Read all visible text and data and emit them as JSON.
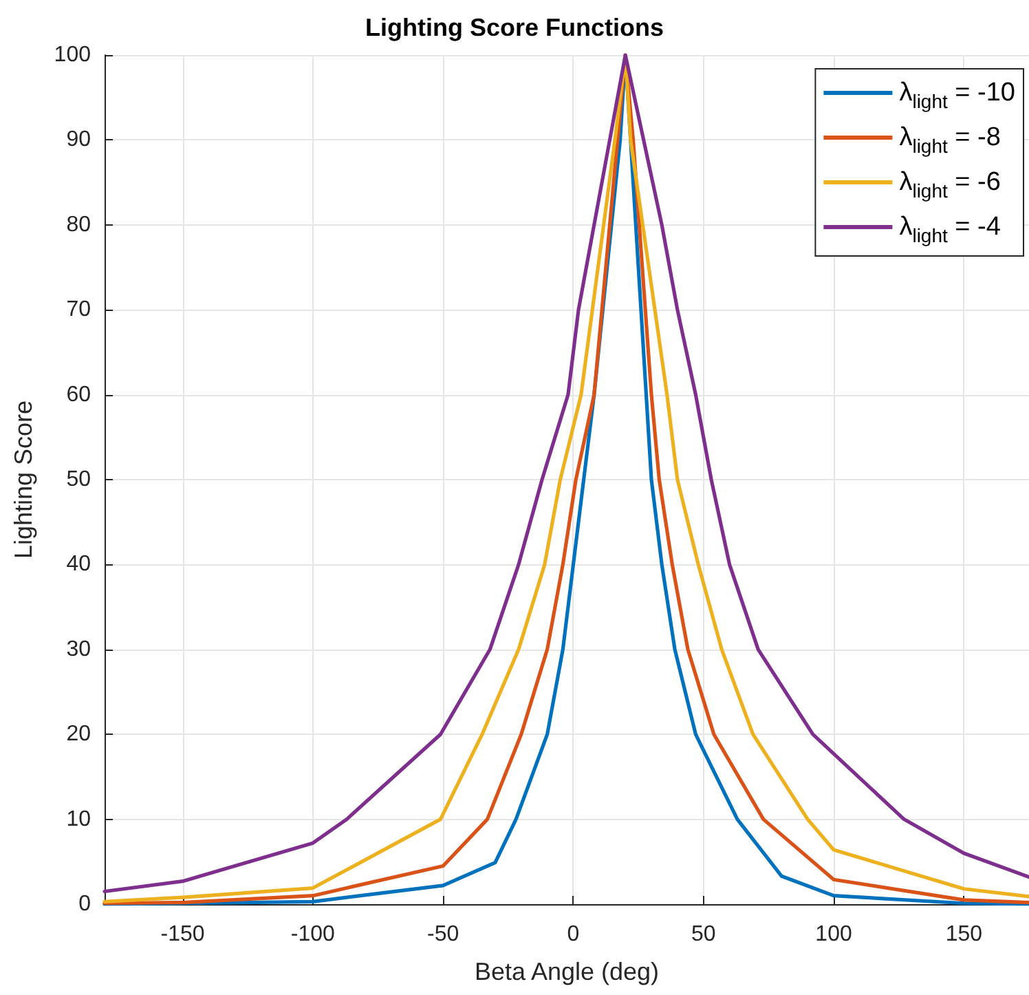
{
  "chart_data": {
    "type": "line",
    "title": "Lighting Score Functions",
    "xlabel": "Beta Angle (deg)",
    "ylabel": "Lighting Score",
    "xlim": [
      -180,
      175
    ],
    "xticks": [
      -150,
      -100,
      -50,
      0,
      50,
      100,
      150
    ],
    "ylim": [
      0,
      100
    ],
    "yticks": [
      0,
      10,
      20,
      30,
      40,
      50,
      60,
      70,
      80,
      90,
      100
    ],
    "grid": true,
    "legend": "top right",
    "marker": "none",
    "line_style": "solid",
    "series": [
      {
        "name": "λ$_{light}$ = -10",
        "color": "#0072bd",
        "x": [
          -180,
          -150,
          -100,
          -50,
          -30,
          -22,
          -10,
          -4,
          0,
          4,
          8,
          18,
          20,
          30,
          34,
          39,
          47,
          63,
          80,
          100,
          150,
          175
        ],
        "values": [
          0,
          0.1,
          0.3,
          2.2,
          4.9,
          10,
          20,
          30,
          40,
          50,
          60,
          90,
          100,
          50,
          40,
          30,
          20,
          10,
          3.3,
          1.0,
          0.1,
          0
        ]
      },
      {
        "name": "λ$_{light}$ = -8",
        "color": "#d95319",
        "x": [
          -180,
          -150,
          -100,
          -50,
          -33,
          -20,
          -10,
          -4,
          1,
          8,
          17,
          20,
          23,
          30,
          33,
          38,
          44,
          54,
          73,
          100,
          150,
          175
        ],
        "values": [
          0.1,
          0.2,
          1.0,
          4.5,
          10,
          20,
          30,
          40,
          50,
          60,
          90,
          100,
          90,
          60,
          50,
          40,
          30,
          20,
          10,
          2.9,
          0.5,
          0.2
        ]
      },
      {
        "name": "λ$_{light}$ = -6",
        "color": "#edb120",
        "x": [
          -180,
          -150,
          -100,
          -51,
          -35,
          -21,
          -11,
          -5,
          3,
          16,
          20,
          22,
          36,
          40,
          48,
          57,
          69,
          90,
          100,
          150,
          175
        ],
        "values": [
          0.3,
          0.8,
          1.9,
          10,
          20,
          30,
          40,
          50,
          60,
          90,
          100,
          90,
          60,
          50,
          40,
          30,
          20,
          10,
          6.4,
          1.8,
          0.9
        ]
      },
      {
        "name": "λ$_{light}$ = -4",
        "color": "#7e2f8e",
        "x": [
          -180,
          -150,
          -100,
          -87,
          -51,
          -32,
          -21,
          -12,
          -2,
          2,
          8,
          14,
          20,
          27,
          34,
          40,
          47,
          53,
          60,
          71,
          92,
          127,
          150,
          175
        ],
        "values": [
          1.5,
          2.7,
          7.2,
          10,
          20,
          30,
          40,
          50,
          60,
          70,
          80,
          90,
          100,
          90,
          80,
          70,
          60,
          50,
          40,
          30,
          20,
          10,
          6.0,
          3.2
        ]
      }
    ]
  }
}
